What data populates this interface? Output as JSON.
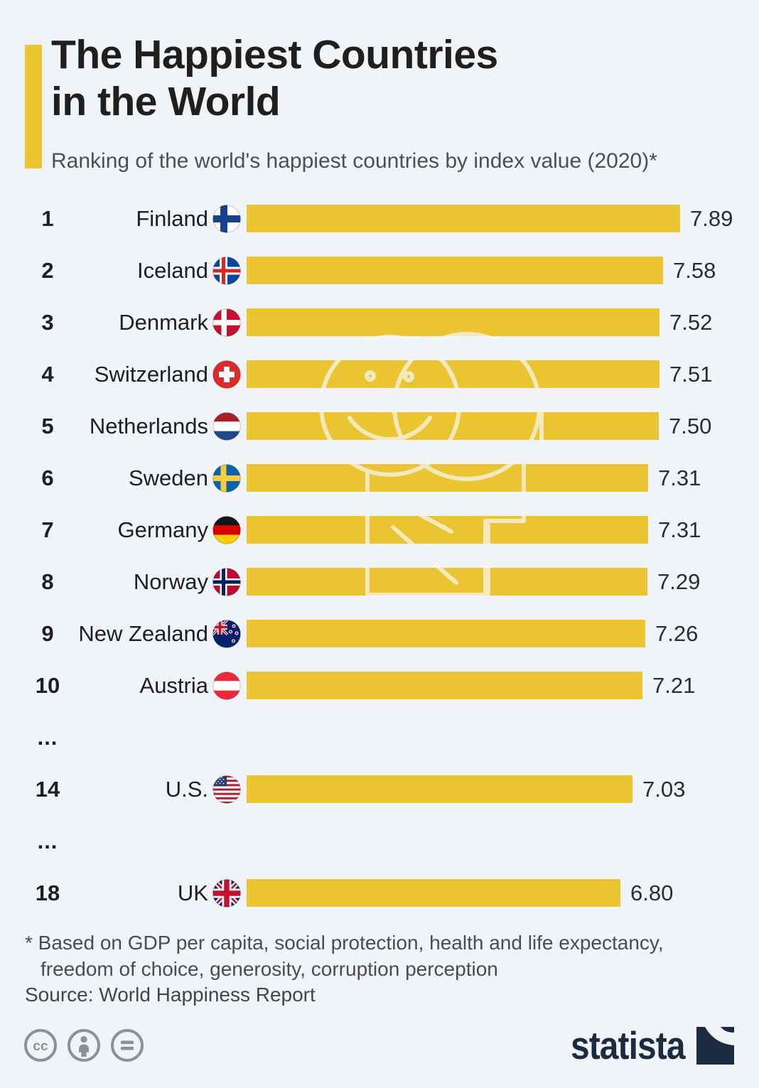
{
  "header": {
    "title_line1": "The Happiest Countries",
    "title_line2": "in the World",
    "subtitle": "Ranking of the world's happiest countries by index value (2020)*"
  },
  "chart_data": {
    "type": "bar",
    "orientation": "horizontal",
    "title": "The Happiest Countries in the World",
    "subtitle": "Ranking of the world's happiest countries by index value (2020)*",
    "value_axis": {
      "min": 0,
      "max_shown": 7.89,
      "unit": "happiness index value"
    },
    "bar_color": "#EAC431",
    "rows": [
      {
        "type": "data",
        "rank": "1",
        "country": "Finland",
        "flag": "fi",
        "value": 7.89,
        "value_label": "7.89"
      },
      {
        "type": "data",
        "rank": "2",
        "country": "Iceland",
        "flag": "is",
        "value": 7.58,
        "value_label": "7.58"
      },
      {
        "type": "data",
        "rank": "3",
        "country": "Denmark",
        "flag": "dk",
        "value": 7.52,
        "value_label": "7.52"
      },
      {
        "type": "data",
        "rank": "4",
        "country": "Switzerland",
        "flag": "ch",
        "value": 7.51,
        "value_label": "7.51"
      },
      {
        "type": "data",
        "rank": "5",
        "country": "Netherlands",
        "flag": "nl",
        "value": 7.5,
        "value_label": "7.50"
      },
      {
        "type": "data",
        "rank": "6",
        "country": "Sweden",
        "flag": "se",
        "value": 7.31,
        "value_label": "7.31"
      },
      {
        "type": "data",
        "rank": "7",
        "country": "Germany",
        "flag": "de",
        "value": 7.31,
        "value_label": "7.31"
      },
      {
        "type": "data",
        "rank": "8",
        "country": "Norway",
        "flag": "no",
        "value": 7.29,
        "value_label": "7.29"
      },
      {
        "type": "data",
        "rank": "9",
        "country": "New Zealand",
        "flag": "nz",
        "value": 7.26,
        "value_label": "7.26"
      },
      {
        "type": "data",
        "rank": "10",
        "country": "Austria",
        "flag": "at",
        "value": 7.21,
        "value_label": "7.21"
      },
      {
        "type": "gap",
        "label": "..."
      },
      {
        "type": "data",
        "rank": "14",
        "country": "U.S.",
        "flag": "us",
        "value": 7.03,
        "value_label": "7.03"
      },
      {
        "type": "gap",
        "label": "..."
      },
      {
        "type": "data",
        "rank": "18",
        "country": "UK",
        "flag": "gb",
        "value": 6.8,
        "value_label": "6.80"
      }
    ]
  },
  "footer": {
    "footnote_lines": [
      "* Based on GDP per capita, social protection, health and life expectancy,",
      "freedom of choice, generosity, corruption perception"
    ],
    "source": "Source: World Happiness Report",
    "brand_wordmark": "statista",
    "license_icons": [
      "cc",
      "attribution",
      "equal"
    ]
  },
  "colors": {
    "background": "#F0F4F8",
    "accent_yellow": "#EAC431",
    "title_text": "#1F1F1D",
    "subtitle_gray": "#4C5056",
    "value_text": "#2D2D2D",
    "footnote_gray": "#4C4C4C",
    "brand_navy": "#1B2B42",
    "cc_gray": "#8D9194",
    "watermark_stroke": "#F3E9BC"
  }
}
